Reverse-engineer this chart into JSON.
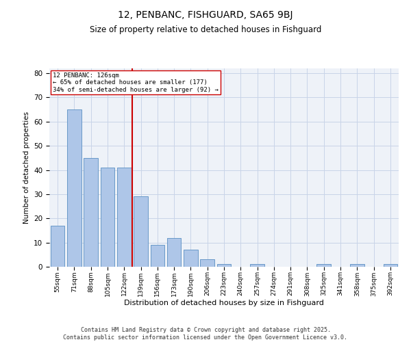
{
  "title1": "12, PENBANC, FISHGUARD, SA65 9BJ",
  "title2": "Size of property relative to detached houses in Fishguard",
  "xlabel": "Distribution of detached houses by size in Fishguard",
  "ylabel": "Number of detached properties",
  "categories": [
    "55sqm",
    "71sqm",
    "88sqm",
    "105sqm",
    "122sqm",
    "139sqm",
    "156sqm",
    "173sqm",
    "190sqm",
    "206sqm",
    "223sqm",
    "240sqm",
    "257sqm",
    "274sqm",
    "291sqm",
    "308sqm",
    "325sqm",
    "341sqm",
    "358sqm",
    "375sqm",
    "392sqm"
  ],
  "values": [
    17,
    65,
    45,
    41,
    41,
    29,
    9,
    12,
    7,
    3,
    1,
    0,
    1,
    0,
    0,
    0,
    1,
    0,
    1,
    0,
    1
  ],
  "bar_color": "#aec6e8",
  "bar_edge_color": "#5a8fc2",
  "vline_x_idx": 4,
  "vline_color": "#cc0000",
  "annotation_text": "12 PENBANC: 126sqm\n← 65% of detached houses are smaller (177)\n34% of semi-detached houses are larger (92) →",
  "annotation_box_color": "#ffffff",
  "annotation_box_edge": "#cc0000",
  "grid_color": "#c8d4e8",
  "background_color": "#eef2f8",
  "ylim": [
    0,
    82
  ],
  "yticks": [
    0,
    10,
    20,
    30,
    40,
    50,
    60,
    70,
    80
  ],
  "footnote": "Contains HM Land Registry data © Crown copyright and database right 2025.\nContains public sector information licensed under the Open Government Licence v3.0."
}
